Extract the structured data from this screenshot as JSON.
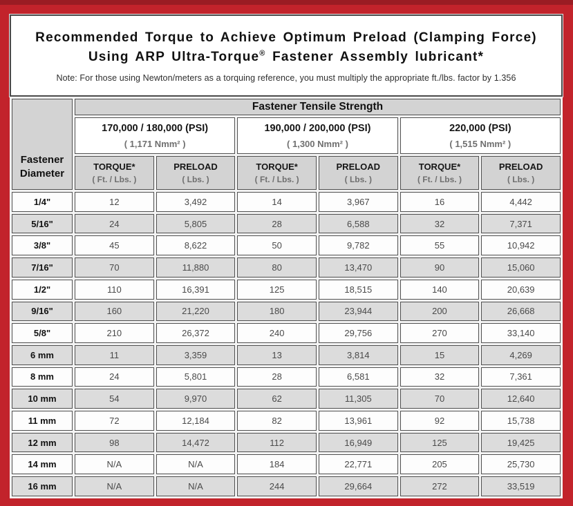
{
  "title": {
    "line1": "Recommended Torque to Achieve Optimum Preload (Clamping Force)",
    "line2_pre": "Using ARP Ultra-Torque",
    "line2_reg_mark": "®",
    "line2_post": " Fastener Assembly lubricant*",
    "note": "Note: For those using Newton/meters as a torquing reference, you must multiply the appropriate ft./lbs. factor by 1.356"
  },
  "table": {
    "corner_header_line1": "Fastener",
    "corner_header_line2": "Diameter",
    "group_header": "Fastener Tensile Strength",
    "strength_columns": [
      {
        "psi": "170,000 / 180,000 (PSI)",
        "metric": "( 1,171 Nmm² )"
      },
      {
        "psi": "190,000 / 200,000 (PSI)",
        "metric": "( 1,300 Nmm² )"
      },
      {
        "psi": "220,000 (PSI)",
        "metric": "( 1,515 Nmm² )"
      }
    ],
    "sub_headers": {
      "torque_label": "TORQUE*",
      "torque_unit": "( Ft. / Lbs. )",
      "preload_label": "PRELOAD",
      "preload_unit": "( Lbs. )"
    },
    "rows": [
      {
        "diameter": "1/4\"",
        "values": [
          "12",
          "3,492",
          "14",
          "3,967",
          "16",
          "4,442"
        ]
      },
      {
        "diameter": "5/16\"",
        "values": [
          "24",
          "5,805",
          "28",
          "6,588",
          "32",
          "7,371"
        ]
      },
      {
        "diameter": "3/8\"",
        "values": [
          "45",
          "8,622",
          "50",
          "9,782",
          "55",
          "10,942"
        ]
      },
      {
        "diameter": "7/16\"",
        "values": [
          "70",
          "11,880",
          "80",
          "13,470",
          "90",
          "15,060"
        ]
      },
      {
        "diameter": "1/2\"",
        "values": [
          "110",
          "16,391",
          "125",
          "18,515",
          "140",
          "20,639"
        ]
      },
      {
        "diameter": "9/16\"",
        "values": [
          "160",
          "21,220",
          "180",
          "23,944",
          "200",
          "26,668"
        ]
      },
      {
        "diameter": "5/8\"",
        "values": [
          "210",
          "26,372",
          "240",
          "29,756",
          "270",
          "33,140"
        ]
      },
      {
        "diameter": "6 mm",
        "values": [
          "11",
          "3,359",
          "13",
          "3,814",
          "15",
          "4,269"
        ]
      },
      {
        "diameter": "8 mm",
        "values": [
          "24",
          "5,801",
          "28",
          "6,581",
          "32",
          "7,361"
        ]
      },
      {
        "diameter": "10 mm",
        "values": [
          "54",
          "9,970",
          "62",
          "11,305",
          "70",
          "12,640"
        ]
      },
      {
        "diameter": "11 mm",
        "values": [
          "72",
          "12,184",
          "82",
          "13,961",
          "92",
          "15,738"
        ]
      },
      {
        "diameter": "12 mm",
        "values": [
          "98",
          "14,472",
          "112",
          "16,949",
          "125",
          "19,425"
        ]
      },
      {
        "diameter": "14 mm",
        "values": [
          "N/A",
          "N/A",
          "184",
          "22,771",
          "205",
          "25,730"
        ]
      },
      {
        "diameter": "16 mm",
        "values": [
          "N/A",
          "N/A",
          "244",
          "29,664",
          "272",
          "33,519"
        ]
      }
    ]
  },
  "colors": {
    "frame_red": "#c2232b",
    "frame_red_dark": "#9a1c23",
    "header_gray": "#d3d3d3",
    "row_stripe_gray": "#dcdcdc",
    "cell_border": "#4f4f4f"
  }
}
